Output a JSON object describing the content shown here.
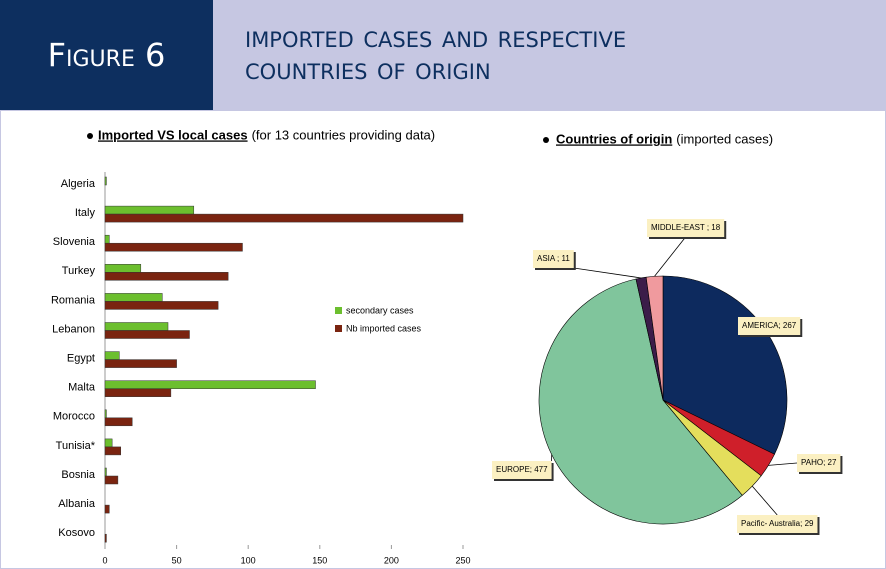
{
  "figure_label": "Figure 6",
  "title": "Imported cases and respective countries of origin",
  "chart_data": [
    {
      "type": "hbar",
      "title": "Imported VS local cases",
      "subtitle": "(for 13 countries providing data)",
      "categories": [
        "Algeria",
        "Italy",
        "Slovenia",
        "Turkey",
        "Romania",
        "Lebanon",
        "Egypt",
        "Malta",
        "Morocco",
        "Tunisia*",
        "Bosnia",
        "Albania",
        "Kosovo"
      ],
      "series": [
        {
          "name": "secondary cases",
          "color": "#6cbf2e",
          "values": [
            1,
            62,
            3,
            25,
            40,
            44,
            10,
            147,
            1,
            5,
            1,
            0,
            0
          ]
        },
        {
          "name": "Nb imported cases",
          "color": "#7a2410",
          "values": [
            0,
            250,
            96,
            86,
            79,
            59,
            50,
            46,
            19,
            11,
            9,
            3,
            1
          ]
        }
      ],
      "xlim": [
        0,
        250
      ],
      "xticks": [
        0,
        50,
        100,
        150,
        200,
        250
      ]
    },
    {
      "type": "pie",
      "title": "Countries of origin",
      "subtitle": "(imported cases)",
      "values": [
        267,
        27,
        29,
        477,
        11,
        18
      ],
      "value_labels": [
        "AMERICA; 267",
        "PAHO; 27",
        "Pacific- Australia; 29",
        "EUROPE; 477",
        "ASIA ; 11",
        "MIDDLE-EAST ; 18"
      ],
      "colors": [
        "#0d2a5e",
        "#cf1f2a",
        "#e4de5c",
        "#80c59c",
        "#3b1c49",
        "#f09a9e"
      ]
    }
  ]
}
